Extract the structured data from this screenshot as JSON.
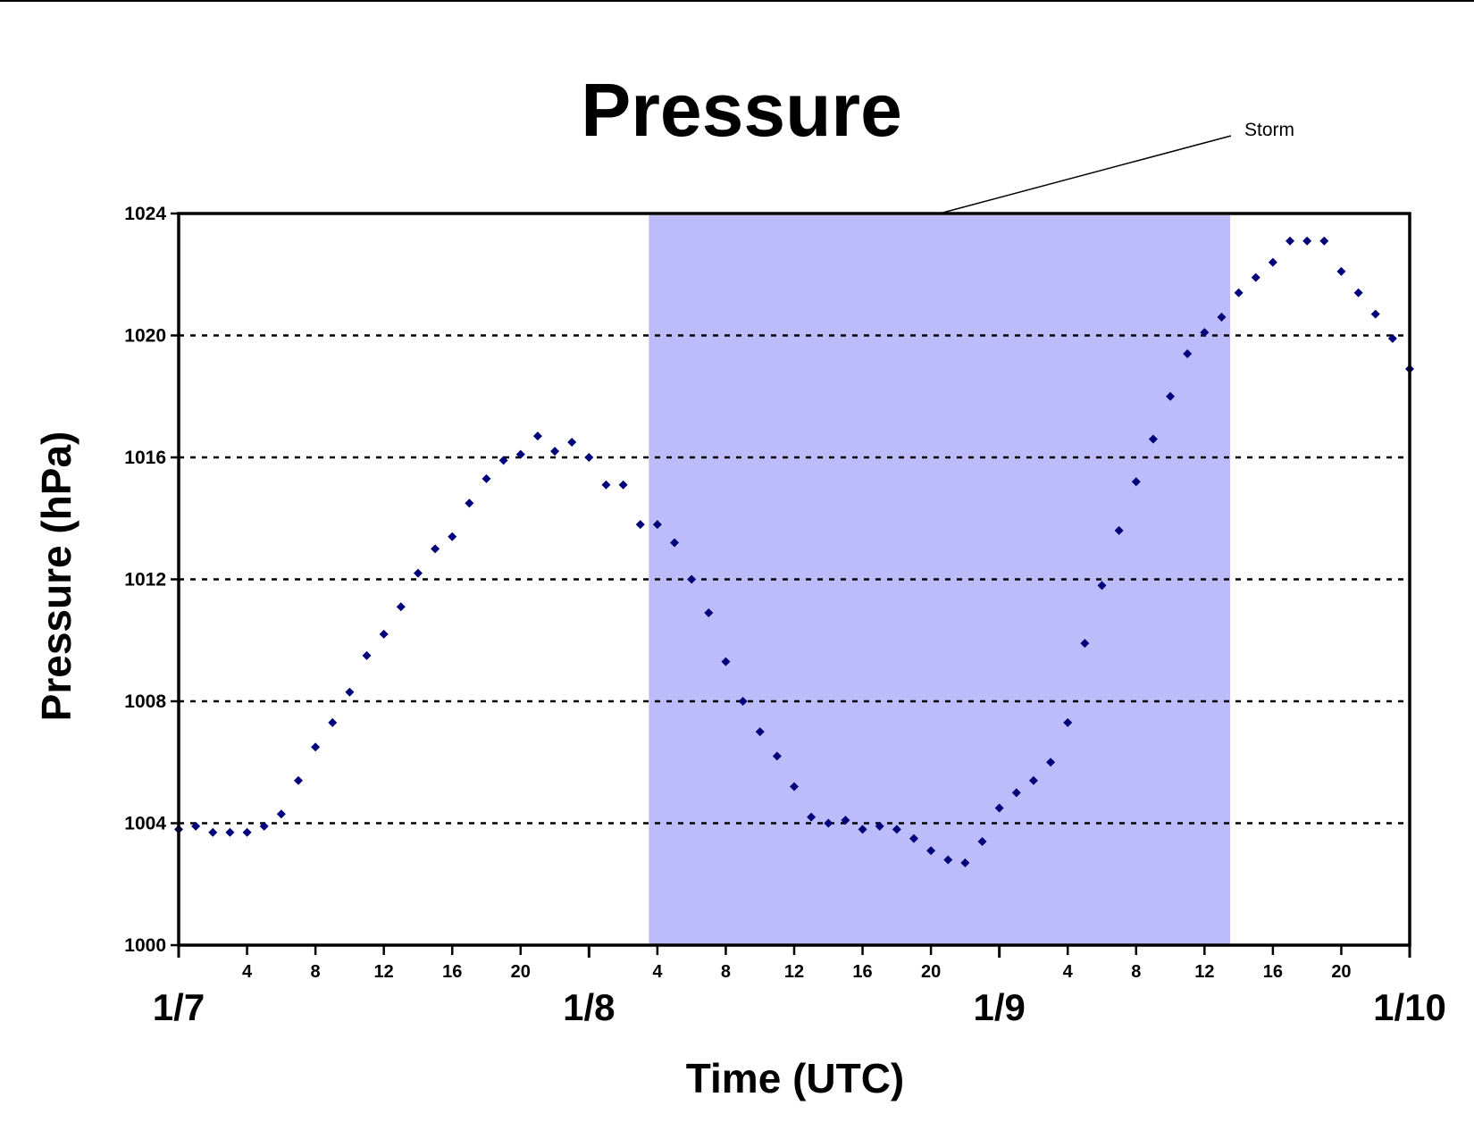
{
  "chart_data": {
    "type": "scatter",
    "title": "Pressure",
    "xlabel": "Time (UTC)",
    "ylabel": "Pressure (hPa)",
    "ylim": [
      1000,
      1024
    ],
    "yticks": [
      1000,
      1004,
      1008,
      1012,
      1016,
      1020,
      1024
    ],
    "xlim_hours_utc": [
      0,
      72
    ],
    "x_minor_ticks": [
      "4",
      "8",
      "12",
      "16",
      "20",
      "4",
      "8",
      "12",
      "16",
      "20",
      "4",
      "8",
      "12",
      "16",
      "20"
    ],
    "x_minor_tick_hours": [
      4,
      8,
      12,
      16,
      20,
      28,
      32,
      36,
      40,
      44,
      52,
      56,
      60,
      64,
      68
    ],
    "x_major_ticks": [
      "1/7",
      "1/8",
      "1/9",
      "1/10"
    ],
    "x_major_tick_hours": [
      0,
      24,
      48,
      72
    ],
    "grid": "horizontal dashed",
    "marker_color": "#00007a",
    "shade_color": "#bcbcfa",
    "annotation": {
      "text": "Storm",
      "x_start": 27.5,
      "x_end": 61.5
    },
    "series": [
      {
        "x": [
          0,
          1,
          2,
          3,
          4,
          5,
          6,
          7,
          8,
          9,
          10,
          11,
          12,
          13,
          14,
          15,
          16,
          17,
          18,
          19,
          20,
          21,
          22,
          23,
          24,
          25,
          26,
          27,
          28,
          29,
          30,
          31,
          32,
          33,
          34,
          35,
          36,
          37,
          38,
          39,
          40,
          41,
          42,
          43,
          44,
          45,
          46,
          47,
          48,
          49,
          50,
          51,
          52,
          53,
          54,
          55,
          56,
          57,
          58,
          59,
          60,
          61,
          62,
          63,
          64,
          65,
          66,
          67,
          68,
          69,
          70,
          71,
          72
        ],
        "y": [
          1003.8,
          1003.9,
          1003.7,
          1003.7,
          1003.7,
          1003.9,
          1004.3,
          1005.4,
          1006.5,
          1007.3,
          1008.3,
          1009.5,
          1010.2,
          1011.1,
          1012.2,
          1013.0,
          1013.4,
          1014.5,
          1015.3,
          1015.9,
          1016.1,
          1016.7,
          1016.2,
          1016.5,
          1016.0,
          1015.1,
          1015.1,
          1013.8,
          1013.8,
          1013.2,
          1012.0,
          1010.9,
          1009.3,
          1008.0,
          1007.0,
          1006.2,
          1005.2,
          1004.2,
          1004.0,
          1004.1,
          1003.8,
          1003.9,
          1003.8,
          1003.5,
          1003.1,
          1002.8,
          1002.7,
          1003.4,
          1004.5,
          1005.0,
          1005.4,
          1006.0,
          1007.3,
          1009.9,
          1011.8,
          1013.6,
          1015.2,
          1016.6,
          1018.0,
          1019.4,
          1020.1,
          1020.6,
          1021.4,
          1021.9,
          1022.4,
          1023.1,
          1023.1,
          1023.1,
          1022.1,
          1021.4,
          1020.7,
          1019.9,
          1018.9
        ]
      }
    ]
  }
}
